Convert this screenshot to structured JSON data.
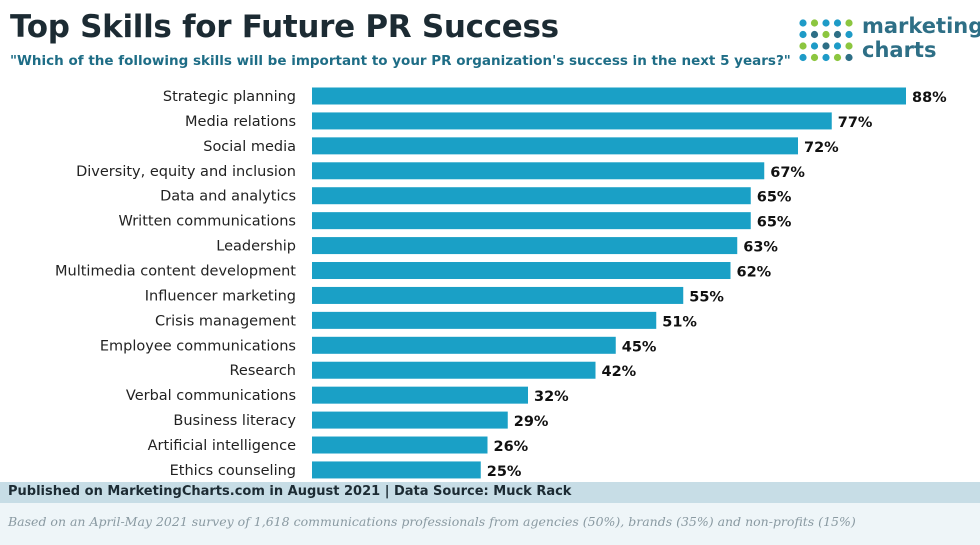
{
  "header": {
    "title": "Top Skills for Future PR Success",
    "subtitle": "\"Which of the following skills will be important to your PR organization's success in the next 5 years?\""
  },
  "logo": {
    "line1": "marketing",
    "line2": "charts",
    "colors": [
      "#1e9bc7",
      "#8cc63f",
      "#2e6f86"
    ]
  },
  "footer": {
    "published": "Published on MarketingCharts.com in August 2021 | Data Source: Muck Rack",
    "note": "Based on an April-May 2021 survey of 1,618 communications professionals from agencies (50%), brands (35%) and non-profits (15%)"
  },
  "colors": {
    "bar": "#1aa0c6"
  },
  "chart_data": {
    "type": "bar",
    "orientation": "horizontal",
    "categories": [
      "Strategic planning",
      "Media relations",
      "Social media",
      "Diversity, equity and inclusion",
      "Data and analytics",
      "Written communications",
      "Leadership",
      "Multimedia content development",
      "Influencer marketing",
      "Crisis management",
      "Employee communications",
      "Research",
      "Verbal communications",
      "Business literacy",
      "Artificial intelligence",
      "Ethics counseling"
    ],
    "values": [
      88,
      77,
      72,
      67,
      65,
      65,
      63,
      62,
      55,
      51,
      45,
      42,
      32,
      29,
      26,
      25
    ],
    "value_labels": [
      "88%",
      "77%",
      "72%",
      "67%",
      "65%",
      "65%",
      "63%",
      "62%",
      "55%",
      "51%",
      "45%",
      "42%",
      "32%",
      "29%",
      "26%",
      "25%"
    ],
    "title": "Top Skills for Future PR Success",
    "xlim": [
      0,
      88
    ],
    "grid": false,
    "legend": "none"
  }
}
